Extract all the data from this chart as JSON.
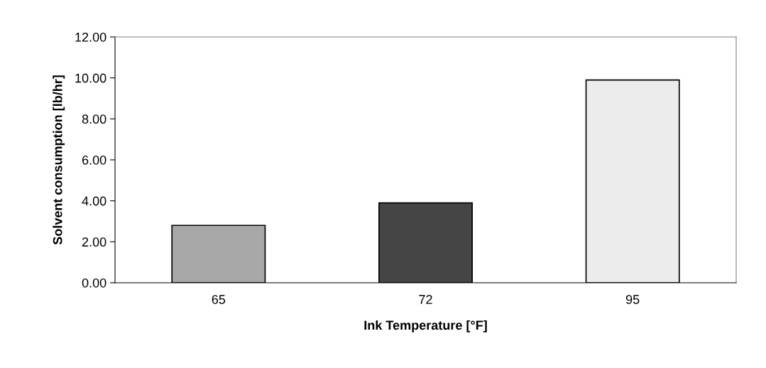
{
  "chart_data": {
    "type": "bar",
    "xlabel": "Ink Temperature [°F]",
    "ylabel": "Solvent consumption [lb/hr]",
    "categories": [
      "65",
      "72",
      "95"
    ],
    "values": [
      2.8,
      3.9,
      9.9
    ],
    "colors": [
      "#a8a8a8",
      "#454545",
      "#ececec"
    ],
    "ylim": [
      0,
      12
    ],
    "yticks": [
      {
        "value": 0,
        "label": "0.00"
      },
      {
        "value": 2,
        "label": "2.00"
      },
      {
        "value": 4,
        "label": "4.00"
      },
      {
        "value": 6,
        "label": "6.00"
      },
      {
        "value": 8,
        "label": "8.00"
      },
      {
        "value": 10,
        "label": "10.00"
      },
      {
        "value": 12,
        "label": "12.00"
      }
    ],
    "grid": false,
    "legend": false
  }
}
